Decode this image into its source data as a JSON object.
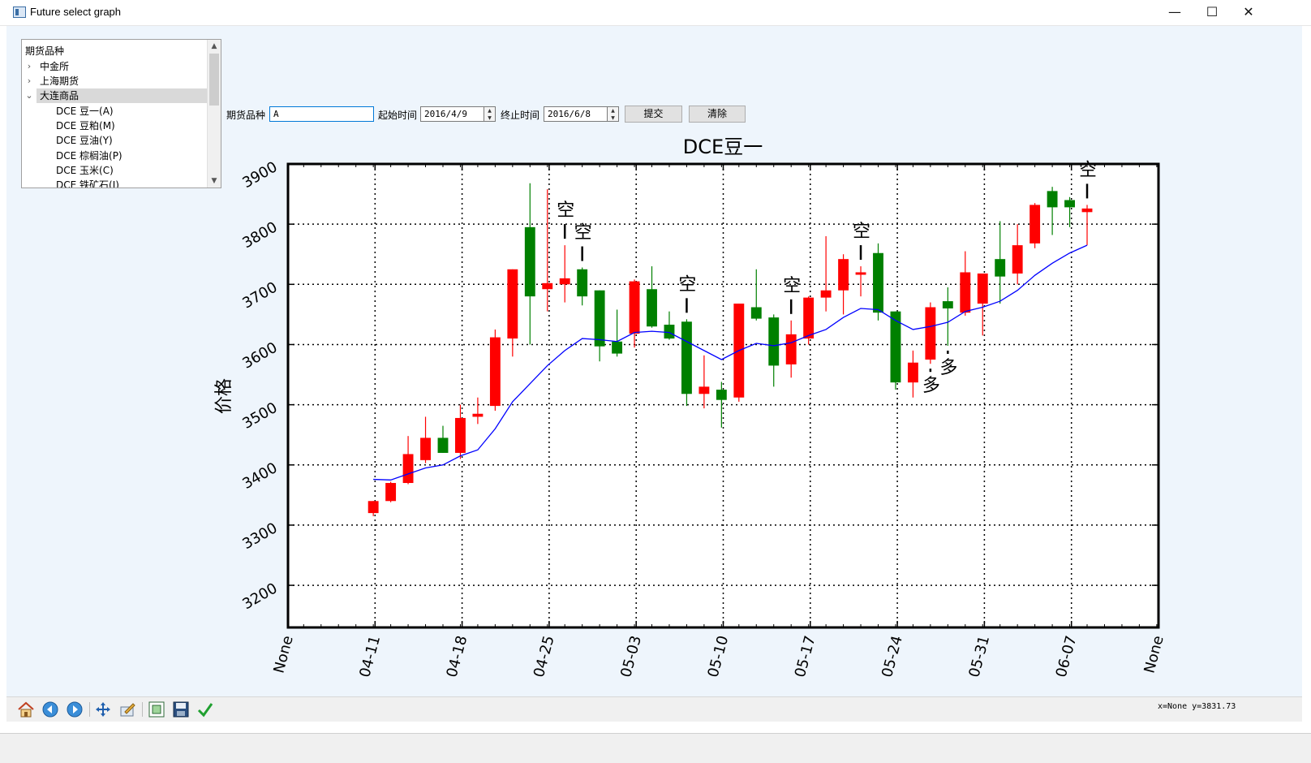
{
  "window": {
    "title": "Future select graph",
    "minimize_glyph": "—",
    "maximize_glyph": "☐",
    "close_glyph": "✕"
  },
  "tree": {
    "header": "期货品种",
    "items": [
      {
        "label": "中金所",
        "expanded": false
      },
      {
        "label": "上海期货",
        "expanded": false
      },
      {
        "label": "大连商品",
        "expanded": true,
        "selected": true
      }
    ],
    "children": [
      "DCE 豆一(A)",
      "DCE 豆粕(M)",
      "DCE 豆油(Y)",
      "DCE 棕榈油(P)",
      "DCE 玉米(C)",
      "DCE 铁矿石(I)"
    ]
  },
  "form": {
    "symbol_label": "期货品种",
    "symbol_value": "A",
    "start_label": "起始时间",
    "start_value": "2016/4/9",
    "end_label": "终止时间",
    "end_value": "2016/6/8",
    "submit_label": "提交",
    "clear_label": "清除"
  },
  "toolbar": {
    "buttons": [
      "home-icon",
      "back-icon",
      "forward-icon",
      "pan-icon",
      "configure-icon",
      "zoom-icon",
      "save-icon",
      "check-icon"
    ]
  },
  "status": {
    "coords": "x=None y=3831.73"
  },
  "colors": {
    "up": "#ff0000",
    "down": "#008000",
    "ma": "#0000ff",
    "background": "#eef5fc"
  },
  "chart_data": {
    "type": "candlestick",
    "title": "DCE豆一",
    "ylabel": "价格",
    "xlabel": "",
    "ylim": [
      3130,
      3900
    ],
    "yticks": [
      3200,
      3300,
      3400,
      3500,
      3600,
      3700,
      3800,
      3900
    ],
    "xtick_labels": [
      "None",
      "04-11",
      "04-18",
      "04-25",
      "05-03",
      "05-10",
      "05-17",
      "05-24",
      "05-31",
      "06-07",
      "None"
    ],
    "grid": true,
    "series": [
      {
        "name": "",
        "type": "ohlc",
        "values": [
          {
            "o": 3320,
            "h": 3340,
            "l": 3315,
            "c": 3340
          },
          {
            "o": 3340,
            "h": 3372,
            "l": 3338,
            "c": 3370
          },
          {
            "o": 3370,
            "h": 3448,
            "l": 3368,
            "c": 3418
          },
          {
            "o": 3408,
            "h": 3480,
            "l": 3403,
            "c": 3445
          },
          {
            "o": 3445,
            "h": 3465,
            "l": 3420,
            "c": 3420
          },
          {
            "o": 3420,
            "h": 3500,
            "l": 3410,
            "c": 3478
          },
          {
            "o": 3480,
            "h": 3512,
            "l": 3468,
            "c": 3485
          },
          {
            "o": 3498,
            "h": 3625,
            "l": 3490,
            "c": 3612
          },
          {
            "o": 3610,
            "h": 3725,
            "l": 3580,
            "c": 3725
          },
          {
            "o": 3795,
            "h": 3868,
            "l": 3600,
            "c": 3680
          },
          {
            "o": 3692,
            "h": 3858,
            "l": 3655,
            "c": 3702
          },
          {
            "o": 3700,
            "h": 3765,
            "l": 3670,
            "c": 3710
          },
          {
            "o": 3725,
            "h": 3728,
            "l": 3665,
            "c": 3680
          },
          {
            "o": 3690,
            "h": 3690,
            "l": 3572,
            "c": 3597
          },
          {
            "o": 3605,
            "h": 3658,
            "l": 3580,
            "c": 3585
          },
          {
            "o": 3618,
            "h": 3708,
            "l": 3595,
            "c": 3705
          },
          {
            "o": 3692,
            "h": 3730,
            "l": 3628,
            "c": 3630
          },
          {
            "o": 3633,
            "h": 3655,
            "l": 3608,
            "c": 3610
          },
          {
            "o": 3638,
            "h": 3642,
            "l": 3498,
            "c": 3518
          },
          {
            "o": 3518,
            "h": 3582,
            "l": 3494,
            "c": 3530
          },
          {
            "o": 3525,
            "h": 3538,
            "l": 3462,
            "c": 3508
          },
          {
            "o": 3512,
            "h": 3668,
            "l": 3505,
            "c": 3668
          },
          {
            "o": 3662,
            "h": 3725,
            "l": 3640,
            "c": 3643
          },
          {
            "o": 3645,
            "h": 3650,
            "l": 3530,
            "c": 3565
          },
          {
            "o": 3567,
            "h": 3640,
            "l": 3545,
            "c": 3617
          },
          {
            "o": 3610,
            "h": 3680,
            "l": 3600,
            "c": 3678
          },
          {
            "o": 3678,
            "h": 3780,
            "l": 3655,
            "c": 3690
          },
          {
            "o": 3690,
            "h": 3750,
            "l": 3650,
            "c": 3742
          },
          {
            "o": 3720,
            "h": 3730,
            "l": 3680,
            "c": 3720
          },
          {
            "o": 3752,
            "h": 3768,
            "l": 3640,
            "c": 3653
          },
          {
            "o": 3655,
            "h": 3655,
            "l": 3525,
            "c": 3537
          },
          {
            "o": 3537,
            "h": 3590,
            "l": 3512,
            "c": 3570
          },
          {
            "o": 3575,
            "h": 3670,
            "l": 3568,
            "c": 3662
          },
          {
            "o": 3672,
            "h": 3695,
            "l": 3598,
            "c": 3660
          },
          {
            "o": 3653,
            "h": 3755,
            "l": 3648,
            "c": 3720
          },
          {
            "o": 3668,
            "h": 3715,
            "l": 3615,
            "c": 3718
          },
          {
            "o": 3742,
            "h": 3805,
            "l": 3668,
            "c": 3713
          },
          {
            "o": 3718,
            "h": 3800,
            "l": 3700,
            "c": 3765
          },
          {
            "o": 3768,
            "h": 3835,
            "l": 3760,
            "c": 3832
          },
          {
            "o": 3855,
            "h": 3862,
            "l": 3782,
            "c": 3828
          },
          {
            "o": 3840,
            "h": 3845,
            "l": 3795,
            "c": 3828
          },
          {
            "o": 3820,
            "h": 3832,
            "l": 3765,
            "c": 3826
          }
        ]
      },
      {
        "name": "",
        "type": "line",
        "values": [
          3376,
          3375,
          3385,
          3395,
          3400,
          3415,
          3425,
          3460,
          3505,
          3535,
          3565,
          3590,
          3610,
          3608,
          3605,
          3620,
          3622,
          3620,
          3605,
          3590,
          3575,
          3590,
          3602,
          3598,
          3603,
          3615,
          3625,
          3645,
          3660,
          3658,
          3640,
          3625,
          3630,
          3637,
          3655,
          3662,
          3672,
          3690,
          3715,
          3735,
          3752,
          3765
        ]
      }
    ],
    "annotations": [
      {
        "index": 11,
        "text": "空",
        "side": "above"
      },
      {
        "index": 12,
        "text": "空",
        "side": "above"
      },
      {
        "index": 18,
        "text": "空",
        "side": "above"
      },
      {
        "index": 24,
        "text": "空",
        "side": "above"
      },
      {
        "index": 28,
        "text": "空",
        "side": "above"
      },
      {
        "index": 32,
        "text": "多",
        "side": "below"
      },
      {
        "index": 33,
        "text": "多",
        "side": "below"
      },
      {
        "index": 41,
        "text": "空",
        "side": "above"
      }
    ]
  }
}
